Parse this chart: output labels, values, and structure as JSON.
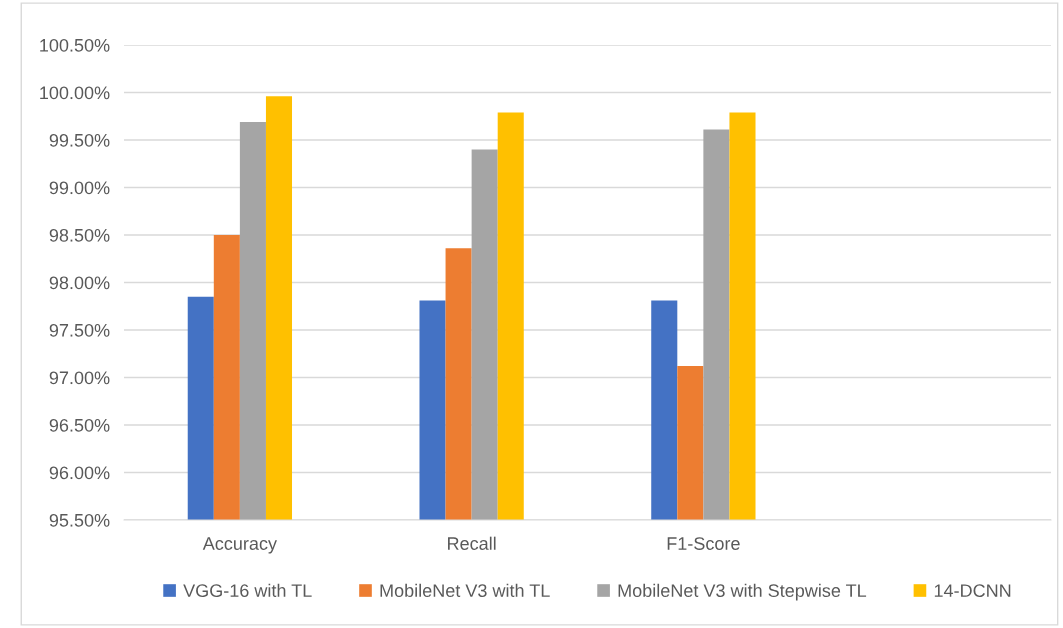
{
  "chart_data": {
    "type": "bar",
    "categories": [
      "Accuracy",
      "Recall",
      "F1-Score",
      null
    ],
    "series": [
      {
        "name": "VGG-16 with TL",
        "color": "#4472c4",
        "values": [
          97.85,
          97.81,
          97.81,
          null
        ]
      },
      {
        "name": "MobileNet V3 with TL",
        "color": "#ed7d31",
        "values": [
          98.5,
          98.36,
          97.12,
          null
        ]
      },
      {
        "name": "MobileNet V3 with Stepwise TL",
        "color": "#a5a5a5",
        "values": [
          99.69,
          99.4,
          99.61,
          null
        ]
      },
      {
        "name": "14-DCNN",
        "color": "#ffc000",
        "values": [
          99.96,
          99.79,
          99.79,
          null
        ]
      }
    ],
    "ylim": [
      95.5,
      100.5
    ],
    "yticks": [
      {
        "value": 95.5,
        "label": "95.50%"
      },
      {
        "value": 96.0,
        "label": "96.00%"
      },
      {
        "value": 96.5,
        "label": "96.50%"
      },
      {
        "value": 97.0,
        "label": "97.00%"
      },
      {
        "value": 97.5,
        "label": "97.50%"
      },
      {
        "value": 98.0,
        "label": "98.00%"
      },
      {
        "value": 98.5,
        "label": "98.50%"
      },
      {
        "value": 99.0,
        "label": "99.00%"
      },
      {
        "value": 99.5,
        "label": "99.50%"
      },
      {
        "value": 100.0,
        "label": "100.00%"
      },
      {
        "value": 100.5,
        "label": "100.50%"
      }
    ],
    "grid": "y",
    "legend": "bottom"
  }
}
